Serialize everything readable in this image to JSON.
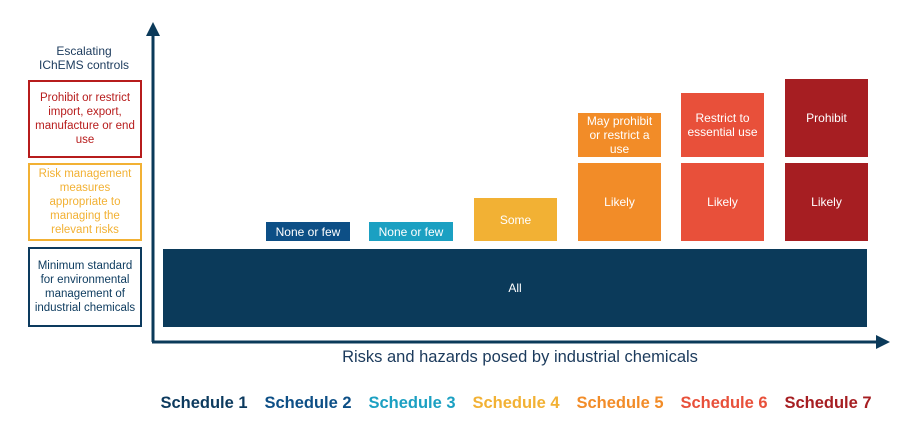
{
  "y_axis_title": "Escalating IChEMS controls",
  "x_axis_title": "Risks and hazards posed by industrial chemicals",
  "legend": [
    {
      "text": "Prohibit or restrict import, export, manufacture or end use",
      "color": "#b71c1c"
    },
    {
      "text": "Risk management measures appropriate to managing the relevant risks",
      "color": "#f2b134"
    },
    {
      "text": "Minimum standard for environmental management of industrial chemicals",
      "color": "#0c3a5e"
    }
  ],
  "all_bar": {
    "label": "All",
    "color": "#0b3a5a"
  },
  "schedules": [
    {
      "name": "Schedule 1",
      "color": "#0c3a5e"
    },
    {
      "name": "Schedule 2",
      "color": "#0d4f86"
    },
    {
      "name": "Schedule 3",
      "color": "#1ba0c2"
    },
    {
      "name": "Schedule 4",
      "color": "#f2b134"
    },
    {
      "name": "Schedule 5",
      "color": "#f28c28"
    },
    {
      "name": "Schedule 6",
      "color": "#e8503a"
    },
    {
      "name": "Schedule 7",
      "color": "#a61e22"
    }
  ],
  "tier2": [
    {
      "schedule": 2,
      "label": "None or few",
      "color": "#0d4f86"
    },
    {
      "schedule": 3,
      "label": "None or few",
      "color": "#1ba0c2"
    },
    {
      "schedule": 4,
      "label": "Some",
      "color": "#f2b134"
    },
    {
      "schedule": 5,
      "label": "Likely",
      "color": "#f28c28"
    },
    {
      "schedule": 6,
      "label": "Likely",
      "color": "#e8503a"
    },
    {
      "schedule": 7,
      "label": "Likely",
      "color": "#a61e22"
    }
  ],
  "tier3": [
    {
      "schedule": 5,
      "label": "May prohibit or restrict a use",
      "color": "#f28c28"
    },
    {
      "schedule": 6,
      "label": "Restrict to essential use",
      "color": "#e8503a"
    },
    {
      "schedule": 7,
      "label": "Prohibit",
      "color": "#a61e22"
    }
  ],
  "axis_color": "#0b3a5a"
}
